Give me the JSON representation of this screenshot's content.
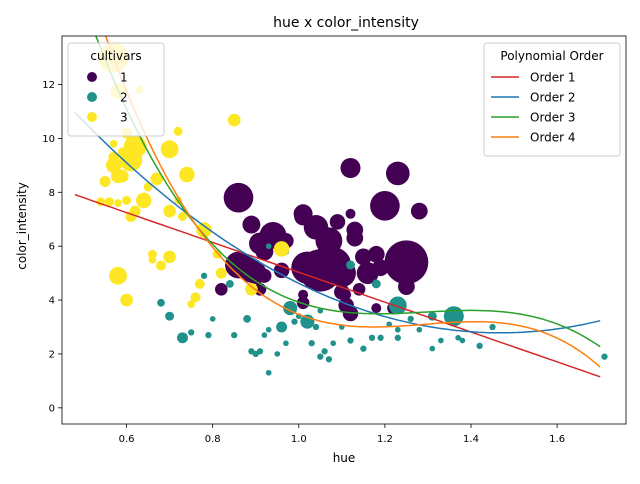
{
  "chart_data": {
    "type": "scatter",
    "title": "hue x color_intensity",
    "xlabel": "hue",
    "ylabel": "color_intensity",
    "xlim": [
      0.45,
      1.76
    ],
    "ylim": [
      -0.6,
      13.8
    ],
    "xticks": [
      0.6,
      0.8,
      1.0,
      1.2,
      1.4,
      1.6
    ],
    "xtick_labels": [
      "0.6",
      "0.8",
      "1.0",
      "1.2",
      "1.4",
      "1.6"
    ],
    "yticks": [
      0,
      2,
      4,
      6,
      8,
      10,
      12
    ],
    "ytick_labels": [
      "0",
      "2",
      "4",
      "6",
      "8",
      "10",
      "12"
    ],
    "grid": false,
    "legend_cultivars": {
      "title": "cultivars",
      "placement": "top-left",
      "entries": [
        {
          "label": "1",
          "color": "#440154"
        },
        {
          "label": "2",
          "color": "#21918c"
        },
        {
          "label": "3",
          "color": "#fde725"
        }
      ]
    },
    "legend_poly": {
      "title": "Polynomial Order",
      "placement": "top-right",
      "entries": [
        {
          "label": "Order 1",
          "color": "#d62728"
        },
        {
          "label": "Order 2",
          "color": "#1f77b4"
        },
        {
          "label": "Order 3",
          "color": "#2ca02c"
        },
        {
          "label": "Order 4",
          "color": "#ff7f0e"
        }
      ]
    },
    "series": [
      {
        "group": "1",
        "color": "#440154",
        "points": [
          [
            1.25,
            5.4,
            480
          ],
          [
            1.08,
            5.3,
            320
          ],
          [
            1.05,
            5.1,
            450
          ],
          [
            1.02,
            5.2,
            260
          ],
          [
            1.1,
            5.0,
            200
          ],
          [
            1.07,
            5.6,
            180
          ],
          [
            1.04,
            6.7,
            150
          ],
          [
            1.07,
            6.2,
            180
          ],
          [
            1.2,
            7.5,
            220
          ],
          [
            1.23,
            8.7,
            140
          ],
          [
            1.12,
            8.9,
            100
          ],
          [
            0.86,
            7.8,
            220
          ],
          [
            0.86,
            5.3,
            180
          ],
          [
            0.89,
            5.1,
            150
          ],
          [
            0.9,
            5.0,
            120
          ],
          [
            0.94,
            6.4,
            180
          ],
          [
            0.91,
            6.1,
            120
          ],
          [
            0.89,
            6.8,
            80
          ],
          [
            0.92,
            5.8,
            80
          ],
          [
            0.97,
            6.2,
            60
          ],
          [
            1.01,
            7.1,
            80
          ],
          [
            1.01,
            7.2,
            90
          ],
          [
            1.09,
            6.9,
            60
          ],
          [
            1.13,
            6.6,
            70
          ],
          [
            1.13,
            6.3,
            70
          ],
          [
            1.15,
            5.6,
            70
          ],
          [
            1.16,
            5.0,
            120
          ],
          [
            1.18,
            5.7,
            70
          ],
          [
            1.19,
            5.2,
            70
          ],
          [
            1.25,
            4.5,
            70
          ],
          [
            1.28,
            7.3,
            70
          ],
          [
            1.1,
            4.3,
            60
          ],
          [
            1.11,
            3.8,
            60
          ],
          [
            1.12,
            3.5,
            60
          ],
          [
            1.06,
            4.8,
            40
          ],
          [
            1.05,
            5.4,
            40
          ],
          [
            1.02,
            4.8,
            40
          ],
          [
            0.96,
            5.1,
            60
          ],
          [
            0.92,
            4.9,
            50
          ],
          [
            0.91,
            4.4,
            40
          ],
          [
            0.88,
            5.4,
            50
          ],
          [
            1.01,
            3.9,
            40
          ],
          [
            1.14,
            4.4,
            40
          ],
          [
            1.22,
            3.7,
            40
          ],
          [
            0.82,
            4.4,
            40
          ],
          [
            1.18,
            3.7,
            25
          ],
          [
            1.12,
            7.2,
            25
          ],
          [
            1.11,
            4.2,
            25
          ],
          [
            1.08,
            5.7,
            25
          ],
          [
            1.01,
            4.2,
            25
          ]
        ]
      },
      {
        "group": "2",
        "color": "#21918c",
        "points": [
          [
            1.36,
            3.4,
            100
          ],
          [
            1.23,
            3.8,
            80
          ],
          [
            0.98,
            3.7,
            50
          ],
          [
            1.02,
            3.2,
            50
          ],
          [
            0.96,
            3.0,
            30
          ],
          [
            0.73,
            2.6,
            30
          ],
          [
            0.7,
            3.4,
            20
          ],
          [
            0.68,
            3.9,
            15
          ],
          [
            0.75,
            2.8,
            10
          ],
          [
            0.79,
            2.7,
            10
          ],
          [
            0.8,
            3.3,
            8
          ],
          [
            0.85,
            2.7,
            10
          ],
          [
            0.88,
            3.3,
            15
          ],
          [
            0.89,
            2.1,
            10
          ],
          [
            0.91,
            2.1,
            10
          ],
          [
            0.92,
            2.7,
            8
          ],
          [
            0.93,
            2.9,
            8
          ],
          [
            0.95,
            2.0,
            8
          ],
          [
            0.97,
            2.4,
            8
          ],
          [
            0.99,
            3.2,
            10
          ],
          [
            1.0,
            3.4,
            8
          ],
          [
            1.03,
            2.4,
            10
          ],
          [
            1.04,
            3.0,
            10
          ],
          [
            1.05,
            3.6,
            8
          ],
          [
            1.06,
            2.1,
            10
          ],
          [
            1.07,
            1.8,
            10
          ],
          [
            1.08,
            2.4,
            8
          ],
          [
            1.1,
            3.0,
            8
          ],
          [
            1.12,
            2.5,
            10
          ],
          [
            1.15,
            2.2,
            10
          ],
          [
            1.17,
            2.6,
            10
          ],
          [
            1.19,
            2.6,
            10
          ],
          [
            1.21,
            3.1,
            8
          ],
          [
            1.23,
            2.6,
            10
          ],
          [
            1.23,
            2.9,
            8
          ],
          [
            1.26,
            3.3,
            10
          ],
          [
            1.28,
            2.9,
            8
          ],
          [
            1.31,
            2.2,
            8
          ],
          [
            1.33,
            2.5,
            8
          ],
          [
            1.37,
            2.6,
            8
          ],
          [
            1.38,
            2.5,
            8
          ],
          [
            1.42,
            2.3,
            10
          ],
          [
            1.45,
            3.0,
            10
          ],
          [
            1.71,
            1.9,
            10
          ],
          [
            1.12,
            5.3,
            20
          ],
          [
            1.18,
            4.6,
            20
          ],
          [
            0.97,
            5.8,
            10
          ],
          [
            0.93,
            6.0,
            8
          ],
          [
            0.84,
            4.6,
            15
          ],
          [
            0.78,
            4.9,
            10
          ],
          [
            0.93,
            1.3,
            8
          ],
          [
            1.31,
            3.4,
            20
          ],
          [
            1.05,
            1.9,
            10
          ],
          [
            0.9,
            2.0,
            10
          ]
        ]
      },
      {
        "group": "3",
        "color": "#fde725",
        "points": [
          [
            0.57,
            13.0,
            220
          ],
          [
            0.58,
            11.75,
            60
          ],
          [
            0.56,
            12.8,
            80
          ],
          [
            0.62,
            9.7,
            130
          ],
          [
            0.61,
            9.2,
            130
          ],
          [
            0.57,
            9.0,
            60
          ],
          [
            0.58,
            8.6,
            50
          ],
          [
            0.59,
            8.6,
            40
          ],
          [
            0.6,
            10.2,
            30
          ],
          [
            0.7,
            9.6,
            80
          ],
          [
            0.74,
            8.66,
            60
          ],
          [
            0.67,
            8.5,
            40
          ],
          [
            0.65,
            8.2,
            20
          ],
          [
            0.72,
            10.26,
            20
          ],
          [
            0.85,
            10.68,
            40
          ],
          [
            0.64,
            7.7,
            60
          ],
          [
            0.62,
            7.3,
            30
          ],
          [
            0.61,
            7.1,
            30
          ],
          [
            0.7,
            7.3,
            40
          ],
          [
            0.73,
            7.1,
            20
          ],
          [
            0.78,
            6.6,
            60
          ],
          [
            0.55,
            8.4,
            30
          ],
          [
            0.56,
            7.65,
            20
          ],
          [
            0.54,
            7.65,
            20
          ],
          [
            0.58,
            7.6,
            15
          ],
          [
            0.58,
            4.9,
            80
          ],
          [
            0.6,
            4.0,
            40
          ],
          [
            0.7,
            5.6,
            40
          ],
          [
            0.68,
            5.28,
            25
          ],
          [
            0.66,
            5.7,
            20
          ],
          [
            0.76,
            4.1,
            25
          ],
          [
            0.77,
            4.6,
            25
          ],
          [
            0.75,
            3.85,
            15
          ],
          [
            0.82,
            5.0,
            30
          ],
          [
            0.89,
            4.4,
            40
          ],
          [
            0.96,
            5.9,
            60
          ],
          [
            0.57,
            9.3,
            30
          ],
          [
            0.59,
            9.5,
            20
          ],
          [
            0.63,
            11.8,
            15
          ],
          [
            0.72,
            7.7,
            15
          ],
          [
            0.66,
            5.5,
            15
          ],
          [
            0.81,
            5.7,
            20
          ],
          [
            0.6,
            7.7,
            20
          ],
          [
            0.64,
            7.6,
            15
          ],
          [
            0.57,
            9.8,
            15
          ]
        ]
      }
    ],
    "curves": [
      {
        "name": "Order 1",
        "color": "#d62728",
        "coeffs": [
          10.57,
          -5.54
        ]
      },
      {
        "name": "Order 2",
        "color": "#1f77b4",
        "coeffs": [
          20.83,
          -24.58,
          8.37
        ]
      },
      {
        "name": "Order 3",
        "color": "#2ca02c",
        "coeffs": [
          55.19,
          -121.45,
          94.54,
          -24.36
        ]
      },
      {
        "name": "Order 4",
        "color": "#ff7f0e",
        "coeffs": [
          60.76,
          -131.96,
          96.27,
          -19.56,
          -2.04
        ]
      }
    ],
    "curve_x_range": [
      0.48,
      1.7
    ]
  }
}
